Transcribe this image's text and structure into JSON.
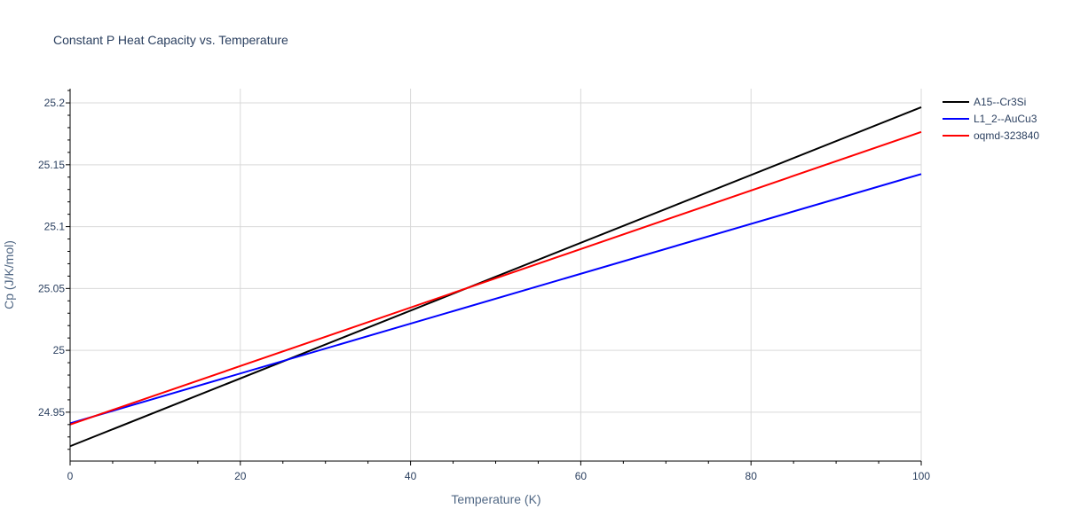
{
  "chart_data": {
    "type": "line",
    "title": "Constant P Heat Capacity vs. Temperature",
    "xlabel": "Temperature (K)",
    "ylabel": "Cp (J/K/mol)",
    "xlim": [
      0,
      100
    ],
    "ylim": [
      24.9105,
      25.2115
    ],
    "x_ticks": [
      0,
      20,
      40,
      60,
      80,
      100
    ],
    "x_tick_labels": [
      "0",
      "20",
      "40",
      "60",
      "80",
      "100"
    ],
    "y_ticks": [
      24.95,
      25.0,
      25.05,
      25.1,
      25.15,
      25.2
    ],
    "y_tick_labels": [
      "24.95",
      "25",
      "25.05",
      "25.1",
      "25.15",
      "25.2"
    ],
    "grid": true,
    "legend_position": "top-right",
    "series": [
      {
        "name": "A15--Cr3Si",
        "color": "#000000",
        "x": [
          0,
          100
        ],
        "y": [
          24.9225,
          25.1965
        ]
      },
      {
        "name": "L1_2--AuCu3",
        "color": "#0000ff",
        "x": [
          0,
          100
        ],
        "y": [
          24.941,
          25.1425
        ]
      },
      {
        "name": "oqmd-323840",
        "color": "#ff0000",
        "x": [
          0,
          100
        ],
        "y": [
          24.94,
          25.1765
        ]
      }
    ]
  }
}
